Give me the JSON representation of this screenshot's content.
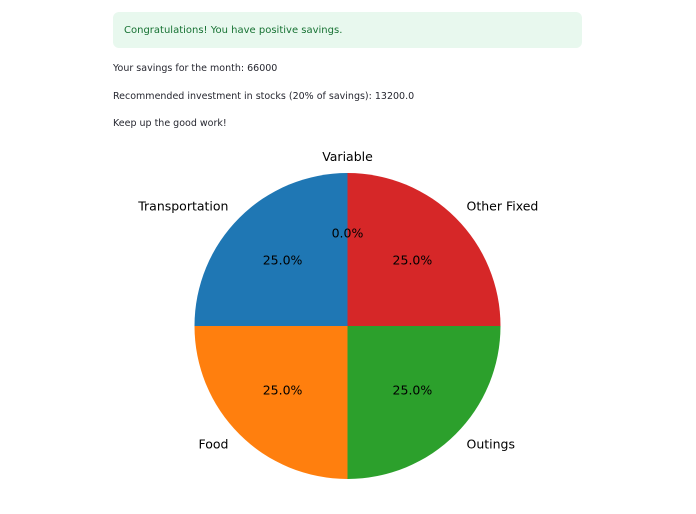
{
  "alert": {
    "text": "Congratulations! You have positive savings."
  },
  "summary": {
    "savings_line": "Your savings for the month: 66000",
    "investment_line": "Recommended investment in stocks (20% of savings): 13200.0",
    "encouragement_line": "Keep up the good work!"
  },
  "chart_data": {
    "type": "pie",
    "categories": [
      "Transportation",
      "Food",
      "Outings",
      "Other Fixed",
      "Variable"
    ],
    "values": [
      25.0,
      25.0,
      25.0,
      25.0,
      0.0
    ],
    "labels_pct": [
      "25.0%",
      "25.0%",
      "25.0%",
      "25.0%",
      "0.0%"
    ],
    "colors": [
      "#1f77b4",
      "#ff7f0e",
      "#2ca02c",
      "#d62728",
      "#9467bd"
    ],
    "start_angle": 90,
    "direction": "counterclockwise",
    "title": ""
  }
}
